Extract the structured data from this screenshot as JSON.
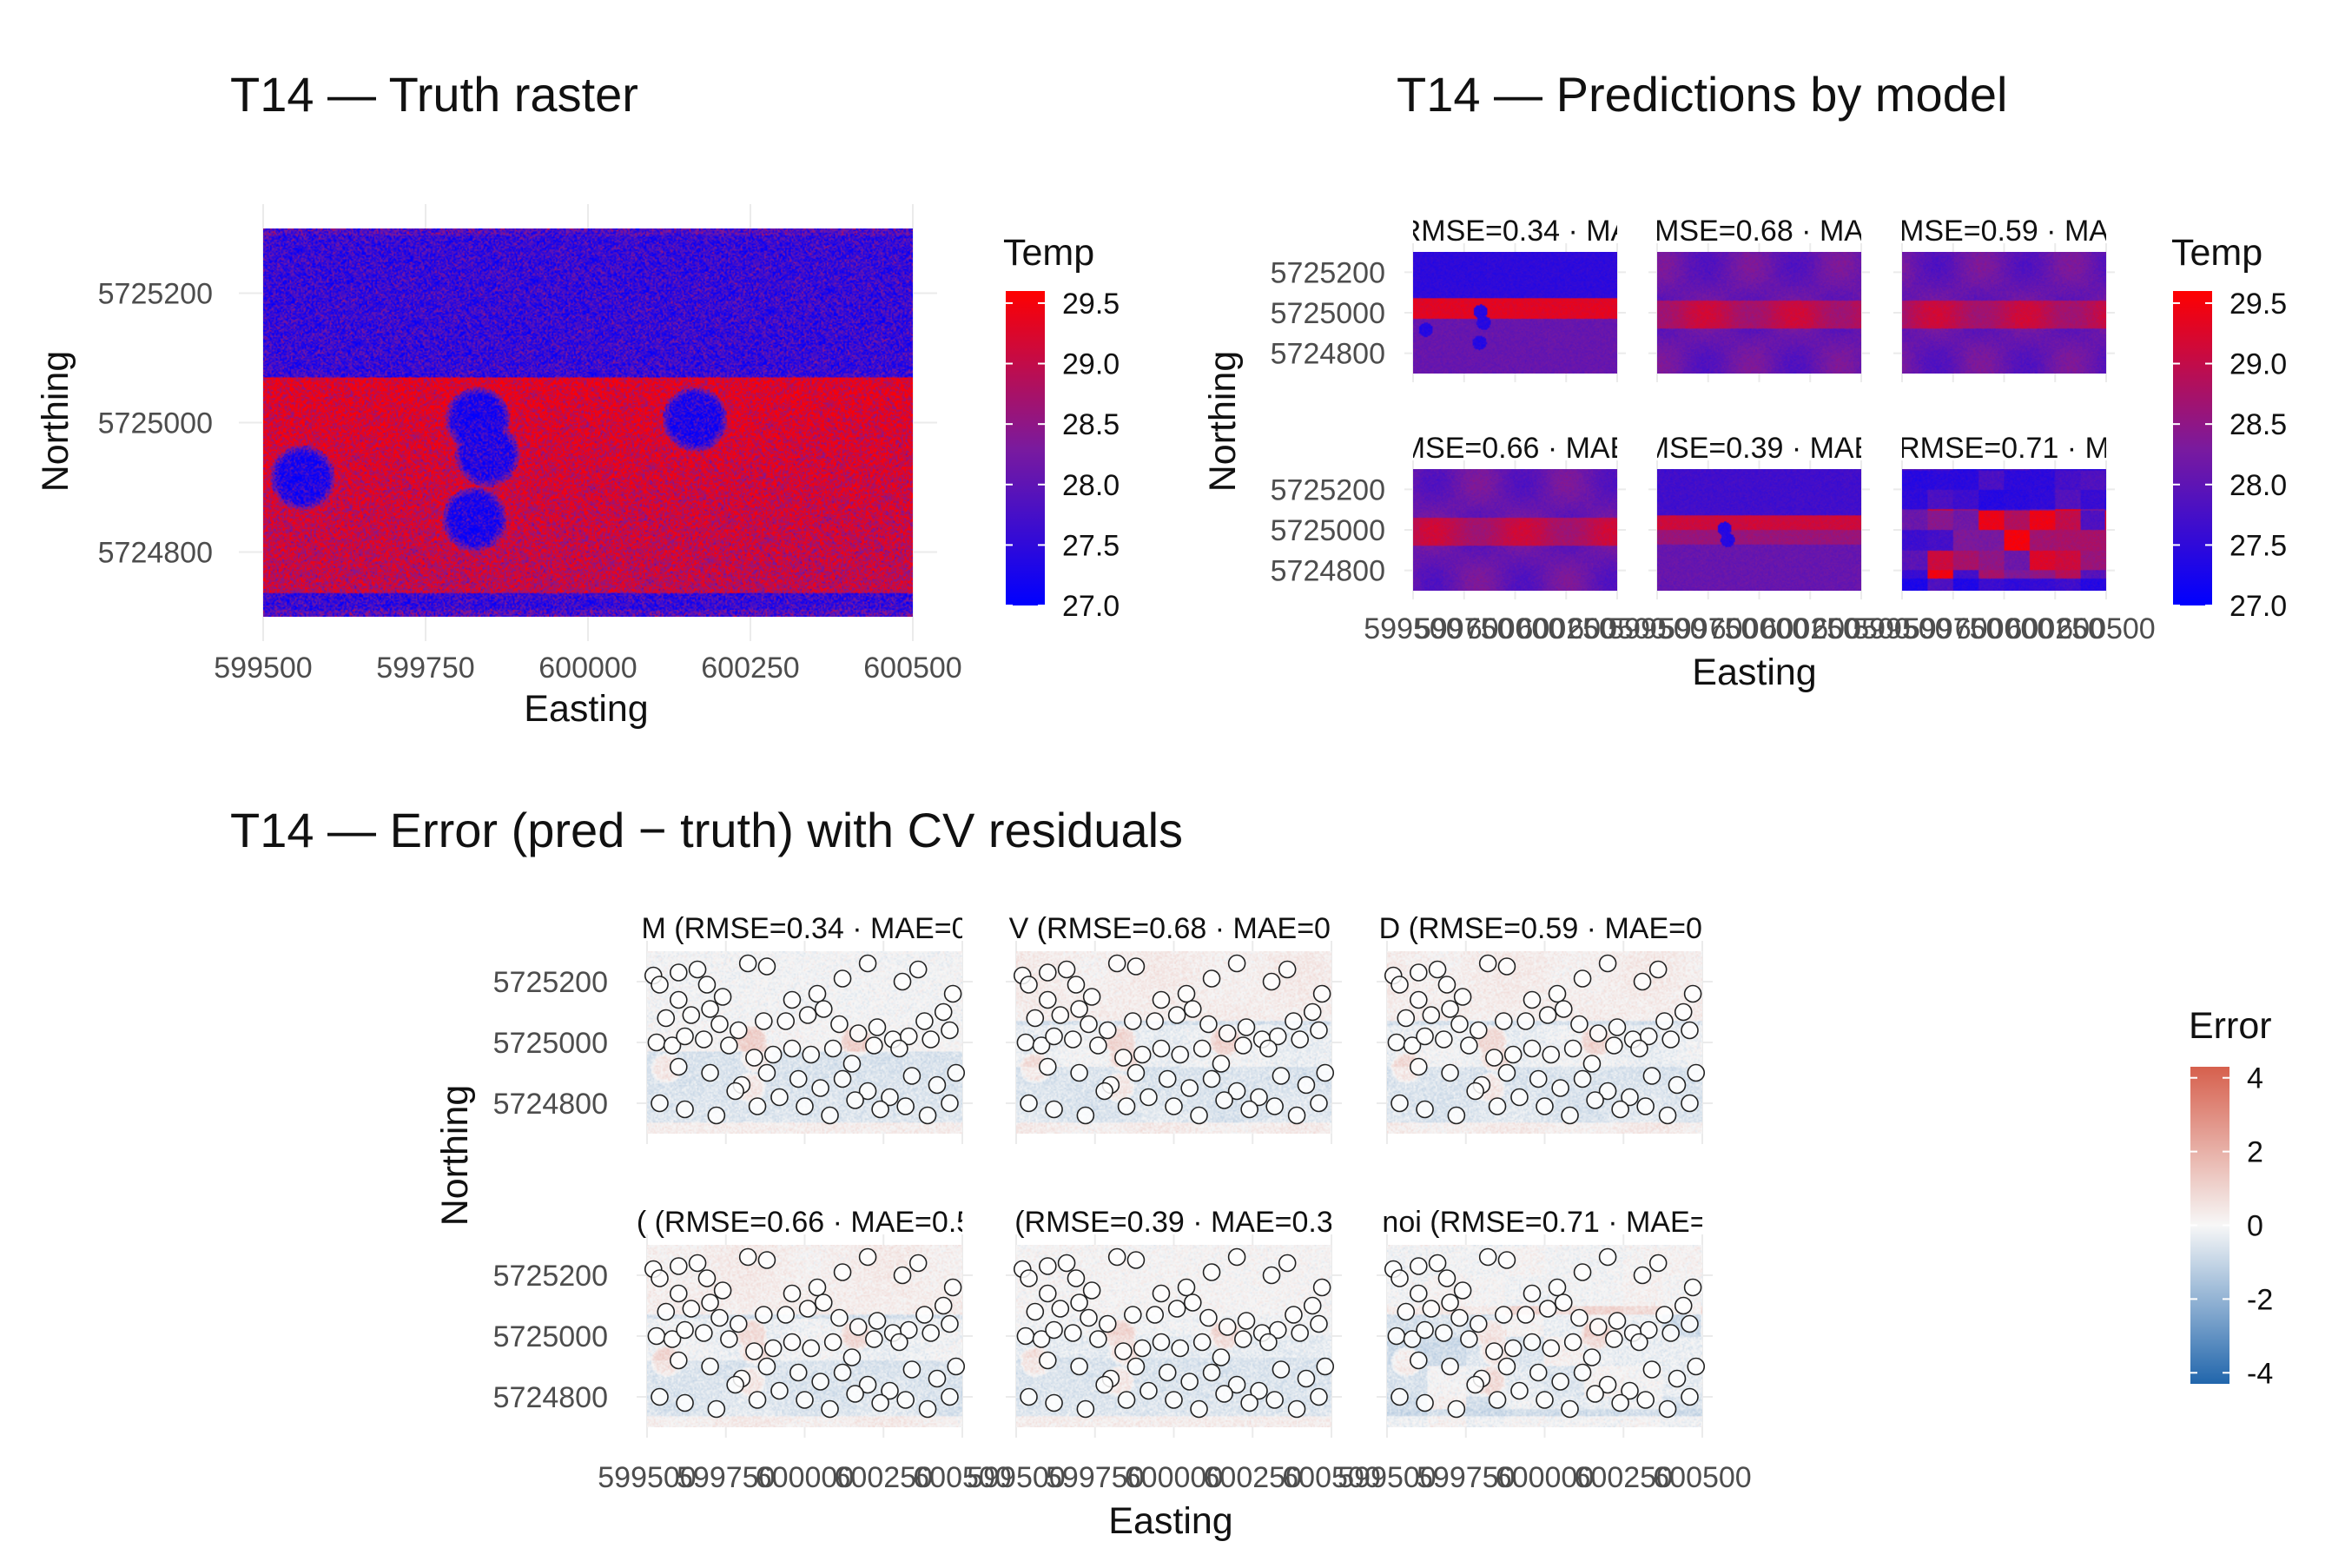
{
  "colors": {
    "temp_low": "#0000ff",
    "temp_mid": "#7a1a9e",
    "temp_high": "#ff0000",
    "err_low": "#2166ac",
    "err_mid": "#f7f7f7",
    "err_high": "#d6604d",
    "grid": "#ebebeb",
    "point_stroke": "#222222"
  },
  "icons": [
    "legend-colorbar",
    "residual-point-marker"
  ],
  "chart_data": [
    {
      "type": "heatmap",
      "title": "T14 — Truth raster",
      "xlabel": "Easting",
      "ylabel": "Northing",
      "xlim": [
        599500,
        600500
      ],
      "ylim": [
        5724700,
        5725300
      ],
      "x_ticks": [
        "599500",
        "599750",
        "600000",
        "600250",
        "600500"
      ],
      "y_ticks": [
        "5724800",
        "5725000",
        "5725200"
      ],
      "field": {
        "background_upper": 27.6,
        "red_band": {
          "northing": [
            5724735,
            5725070
          ],
          "value": 29.3
        },
        "cold_spots": [
          {
            "x": 599560,
            "y": 5724915,
            "value": 27.3
          },
          {
            "x": 599830,
            "y": 5725005,
            "value": 27.3
          },
          {
            "x": 599845,
            "y": 5724950,
            "value": 27.4
          },
          {
            "x": 599825,
            "y": 5724850,
            "value": 27.3
          },
          {
            "x": 600165,
            "y": 5725005,
            "value": 27.3
          }
        ]
      },
      "legend": {
        "title": "Temp",
        "labels": [
          "29.5",
          "29.0",
          "28.5",
          "28.0",
          "27.5",
          "27.0"
        ],
        "range": [
          27.0,
          29.6
        ],
        "placement": "right"
      }
    },
    {
      "type": "heatmap",
      "title": "T14 — Predictions by model",
      "xlabel": "Easting",
      "ylabel": "Northing",
      "xlim": [
        599500,
        600500
      ],
      "ylim": [
        5724700,
        5725300
      ],
      "x_ticks_text": [
        "5995",
        "5997",
        "5600",
        "600",
        "250",
        "5995",
        "5997",
        "5600",
        "600",
        "250",
        "5995",
        "5997",
        "5600",
        "600",
        "250",
        "00"
      ],
      "x_ticks_overlapped": "599500599750600000600250600500",
      "y_ticks": [
        "5724800",
        "5725000",
        "5725200"
      ],
      "panels": [
        {
          "label": "RMSE=0.34 · MA",
          "style": "bands"
        },
        {
          "label": "MSE=0.68 · MA",
          "style": "smooth"
        },
        {
          "label": "MSE=0.59 · MA",
          "style": "smooth"
        },
        {
          "label": "MSE=0.66 · MAE",
          "style": "smooth"
        },
        {
          "label": "MSE=0.39 · MAE",
          "style": "bands-soft"
        },
        {
          "label": "RMSE=0.71 · M",
          "style": "voronoi"
        }
      ],
      "legend": {
        "title": "Temp",
        "labels": [
          "29.5",
          "29.0",
          "28.5",
          "28.0",
          "27.5",
          "27.0"
        ],
        "range": [
          27.0,
          29.6
        ],
        "placement": "right"
      }
    },
    {
      "type": "heatmap",
      "title": "T14 — Error (pred − truth) with CV residuals",
      "xlabel": "Easting",
      "ylabel": "Northing",
      "xlim": [
        599500,
        600500
      ],
      "ylim": [
        5724700,
        5725300
      ],
      "x_ticks_text": [
        "599500",
        "599750",
        "600000",
        "600250",
        "600500"
      ],
      "y_ticks": [
        "5724800",
        "5725000",
        "5725200"
      ],
      "panels": [
        {
          "label": "M  (RMSE=0.34 · MAE=0"
        },
        {
          "label": "V  (RMSE=0.68 · MAE=0."
        },
        {
          "label": "D  (RMSE=0.59 · MAE=0."
        },
        {
          "label": "(  (RMSE=0.66 · MAE=0.5"
        },
        {
          "label": "(RMSE=0.39 · MAE=0.3"
        },
        {
          "label": "noi  (RMSE=0.71 · MAE="
        }
      ],
      "residual_points": [
        [
          599520,
          5725220
        ],
        [
          599540,
          5725190
        ],
        [
          599600,
          5725230
        ],
        [
          599660,
          5725240
        ],
        [
          599690,
          5725190
        ],
        [
          599740,
          5725150
        ],
        [
          599820,
          5725260
        ],
        [
          599880,
          5725250
        ],
        [
          599960,
          5725140
        ],
        [
          600040,
          5725160
        ],
        [
          600120,
          5725210
        ],
        [
          600200,
          5725260
        ],
        [
          600310,
          5725200
        ],
        [
          600360,
          5725240
        ],
        [
          600470,
          5725160
        ],
        [
          599600,
          5725140
        ],
        [
          599700,
          5725110
        ],
        [
          599560,
          5725080
        ],
        [
          599640,
          5725090
        ],
        [
          599730,
          5725060
        ],
        [
          599790,
          5725040
        ],
        [
          599870,
          5725070
        ],
        [
          599940,
          5725070
        ],
        [
          600010,
          5725090
        ],
        [
          600060,
          5725110
        ],
        [
          600110,
          5725060
        ],
        [
          600170,
          5725030
        ],
        [
          600230,
          5725050
        ],
        [
          600280,
          5725010
        ],
        [
          600330,
          5725020
        ],
        [
          600380,
          5725070
        ],
        [
          600440,
          5725100
        ],
        [
          599530,
          5725000
        ],
        [
          599580,
          5724990
        ],
        [
          599620,
          5725020
        ],
        [
          599680,
          5725010
        ],
        [
          599760,
          5724990
        ],
        [
          599840,
          5724950
        ],
        [
          599900,
          5724960
        ],
        [
          599960,
          5724980
        ],
        [
          600020,
          5724960
        ],
        [
          600090,
          5724980
        ],
        [
          600150,
          5724930
        ],
        [
          600220,
          5724990
        ],
        [
          600300,
          5724980
        ],
        [
          600400,
          5725010
        ],
        [
          600460,
          5725040
        ],
        [
          599600,
          5724920
        ],
        [
          599700,
          5724900
        ],
        [
          599800,
          5724860
        ],
        [
          599880,
          5724900
        ],
        [
          599980,
          5724880
        ],
        [
          600050,
          5724850
        ],
        [
          600120,
          5724880
        ],
        [
          600200,
          5724840
        ],
        [
          600270,
          5724820
        ],
        [
          600340,
          5724890
        ],
        [
          600420,
          5724860
        ],
        [
          600480,
          5724900
        ],
        [
          599540,
          5724800
        ],
        [
          599620,
          5724780
        ],
        [
          599720,
          5724760
        ],
        [
          599780,
          5724840
        ],
        [
          599850,
          5724790
        ],
        [
          599920,
          5724820
        ],
        [
          600000,
          5724790
        ],
        [
          600080,
          5724760
        ],
        [
          600160,
          5724810
        ],
        [
          600240,
          5724780
        ],
        [
          600320,
          5724790
        ],
        [
          600390,
          5724760
        ],
        [
          600460,
          5724800
        ]
      ],
      "legend": {
        "title": "Error",
        "labels": [
          "4",
          "2",
          "0",
          "-2",
          "-4"
        ],
        "range": [
          -4.3,
          4.3
        ],
        "placement": "right"
      }
    }
  ]
}
